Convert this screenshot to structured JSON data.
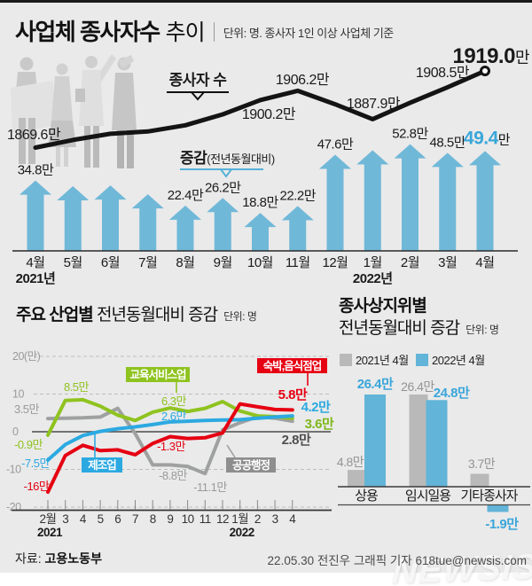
{
  "header": {
    "title": "사업체 종사자수",
    "title_light": "추이",
    "unit": "단위: 명. 종사자 1인 이상 사업체 기준"
  },
  "colors": {
    "background": "#eaeaea",
    "bar_blue": "#70b8d8",
    "accent_blue": "#3aa6da",
    "line_black": "#141414",
    "industry_green": "#8fc31f",
    "industry_red": "#e60012",
    "industry_blue": "#2ca9e1",
    "industry_gray": "#9fa0a0",
    "status_gray_bar": "#b9b9b9",
    "status_blue_bar": "#62b4d8",
    "gray_text": "#9a9a9a",
    "dark_text": "#1a1a1a"
  },
  "chart_data": [
    {
      "id": "employment-trend",
      "type": "line+bar",
      "title": "사업체 종사자수 추이",
      "unit": "단위: 명. 종사자 1인 이상 사업체 기준",
      "months": [
        "4월",
        "5월",
        "6월",
        "7월",
        "8월",
        "9월",
        "10월",
        "11월",
        "12월",
        "1월",
        "2월",
        "3월",
        "4월"
      ],
      "year_labels": [
        {
          "text": "2021년",
          "month_index": 0
        },
        {
          "text": "2022년",
          "month_index": 9
        }
      ],
      "line": {
        "name": "종사자 수",
        "values_10k": [
          1869.6,
          1874.5,
          1878.5,
          1880.0,
          1884.0,
          1891.0,
          1900.2,
          1906.2,
          1897.5,
          1887.9,
          1898.5,
          1908.5,
          1919.0
        ],
        "estimated_month_indices": [
          1,
          2,
          3,
          4,
          5,
          8,
          10
        ],
        "labeled_points": [
          {
            "month_index": 0,
            "text": "1869.6만"
          },
          {
            "month_index": 6,
            "text": "1900.2만"
          },
          {
            "month_index": 7,
            "text": "1906.2만"
          },
          {
            "month_index": 9,
            "text": "1887.9만"
          },
          {
            "month_index": 11,
            "text": "1908.5만"
          },
          {
            "month_index": 12,
            "text": "1919.0만",
            "value_text": "1919.0",
            "suffix": "만",
            "emphasis": true
          }
        ]
      },
      "bars": {
        "name": "증감",
        "name_sub": "(전년동월대비)",
        "values_10k": [
          34.8,
          32.0,
          32.4,
          28.0,
          22.4,
          26.2,
          18.8,
          22.2,
          47.6,
          49.8,
          52.8,
          48.5,
          49.4
        ],
        "estimated_month_indices": [
          1,
          2,
          3,
          9
        ],
        "labeled_points": [
          {
            "month_index": 0,
            "text": "34.8만"
          },
          {
            "month_index": 4,
            "text": "22.4만"
          },
          {
            "month_index": 5,
            "text": "26.2만"
          },
          {
            "month_index": 6,
            "text": "18.8만"
          },
          {
            "month_index": 7,
            "text": "22.2만"
          },
          {
            "month_index": 8,
            "text": "47.6만"
          },
          {
            "month_index": 10,
            "text": "52.8만"
          },
          {
            "month_index": 11,
            "text": "48.5만"
          },
          {
            "month_index": 12,
            "text": "49.4만",
            "value_text": "49.4",
            "suffix": "만",
            "emphasis": true
          }
        ]
      }
    },
    {
      "id": "industry-yoy",
      "type": "line",
      "title_strong": "주요 산업별",
      "title_rest": " 전년동월대비 증감",
      "unit": "단위: 명",
      "ylim": [
        -20,
        20
      ],
      "y_ticks": [
        {
          "v": 20,
          "label": "20(만)"
        },
        {
          "v": 10,
          "label": "10"
        },
        {
          "v": 0,
          "label": "0"
        },
        {
          "v": -10,
          "label": "-10"
        },
        {
          "v": -20,
          "label": "-20"
        }
      ],
      "x_labels": [
        "2월",
        "3",
        "4",
        "5",
        "6",
        "7",
        "8",
        "9",
        "10",
        "11",
        "12",
        "1월",
        "2",
        "3",
        "4"
      ],
      "year_labels": [
        {
          "text": "2021",
          "x_index": 0
        },
        {
          "text": "2022",
          "x_index": 11
        }
      ],
      "series": [
        {
          "name": "공공행정",
          "color": "#9fa0a0",
          "values": [
            3.5,
            3.6,
            3.7,
            3.9,
            6.2,
            -0.5,
            -8.8,
            -8.8,
            -9.2,
            -11.1,
            0.5,
            2.4,
            4.0,
            3.6,
            2.8
          ],
          "point_labels": [
            {
              "i": 0,
              "text": "3.5만"
            },
            {
              "i": 6,
              "text": "-8.8만"
            },
            {
              "i": 9,
              "text": "-11.1만"
            }
          ],
          "end_label": "2.8만",
          "end_label_color": "#4f4f4f"
        },
        {
          "name": "교육서비스업",
          "color": "#8fc31f",
          "values": [
            -0.9,
            8.3,
            8.5,
            6.8,
            4.4,
            3.0,
            5.2,
            6.3,
            5.4,
            6.2,
            8.0,
            5.5,
            4.2,
            4.0,
            3.6
          ],
          "point_labels": [
            {
              "i": 0,
              "text": "-0.9만"
            },
            {
              "i": 2,
              "text": "8.5만"
            },
            {
              "i": 7,
              "text": "6.3만"
            }
          ],
          "end_label": "3.6만",
          "end_label_color": "#7fb71c"
        },
        {
          "name": "제조업",
          "color": "#2ca9e1",
          "values": [
            -7.5,
            -3.4,
            -1.0,
            0.1,
            0.8,
            1.3,
            1.9,
            2.6,
            2.8,
            3.0,
            3.1,
            3.2,
            3.6,
            3.9,
            4.2
          ],
          "point_labels": [
            {
              "i": 0,
              "text": "-7.5만"
            },
            {
              "i": 7,
              "text": "2.6만"
            }
          ],
          "end_label": "4.2만",
          "end_label_color": "#2ca9e1"
        },
        {
          "name": "숙박,음식점업",
          "color": "#e60012",
          "values": [
            -16.0,
            -6.3,
            -3.6,
            -5.0,
            -4.8,
            -6.1,
            -3.1,
            -1.3,
            -1.8,
            -1.6,
            -0.3,
            7.4,
            6.6,
            5.9,
            5.8
          ],
          "point_labels": [
            {
              "i": 0,
              "text": "-16만"
            },
            {
              "i": 7,
              "text": "-1.3만"
            }
          ],
          "end_label": "5.8만",
          "end_label_color": "#e60012"
        }
      ]
    },
    {
      "id": "status-yoy",
      "type": "grouped-bar",
      "title_line1": "종사상지위별",
      "title_line2": "전년동월대비 증감",
      "unit": "단위: 명",
      "legend": [
        {
          "label": "2021년 4월",
          "color": "#b9b9b9"
        },
        {
          "label": "2022년 4월",
          "color": "#62b4d8"
        }
      ],
      "categories": [
        "상용",
        "임시일용",
        "기타종사자"
      ],
      "series": [
        {
          "name": "2021년 4월",
          "values": [
            4.8,
            26.4,
            3.7
          ],
          "labels": [
            "4.8만",
            "26.4만",
            "3.7만"
          ]
        },
        {
          "name": "2022년 4월",
          "values": [
            26.4,
            24.8,
            -1.9
          ],
          "labels": [
            "26.4만",
            "24.8만",
            "-1.9만"
          ]
        }
      ]
    }
  ],
  "footer": {
    "source_label": "자료: ",
    "source_value": "고용노동부",
    "credit": "22.05.30 전진우 그래픽 기자",
    "email": "618tue@newsis.com"
  },
  "watermark": "NEWSIS"
}
